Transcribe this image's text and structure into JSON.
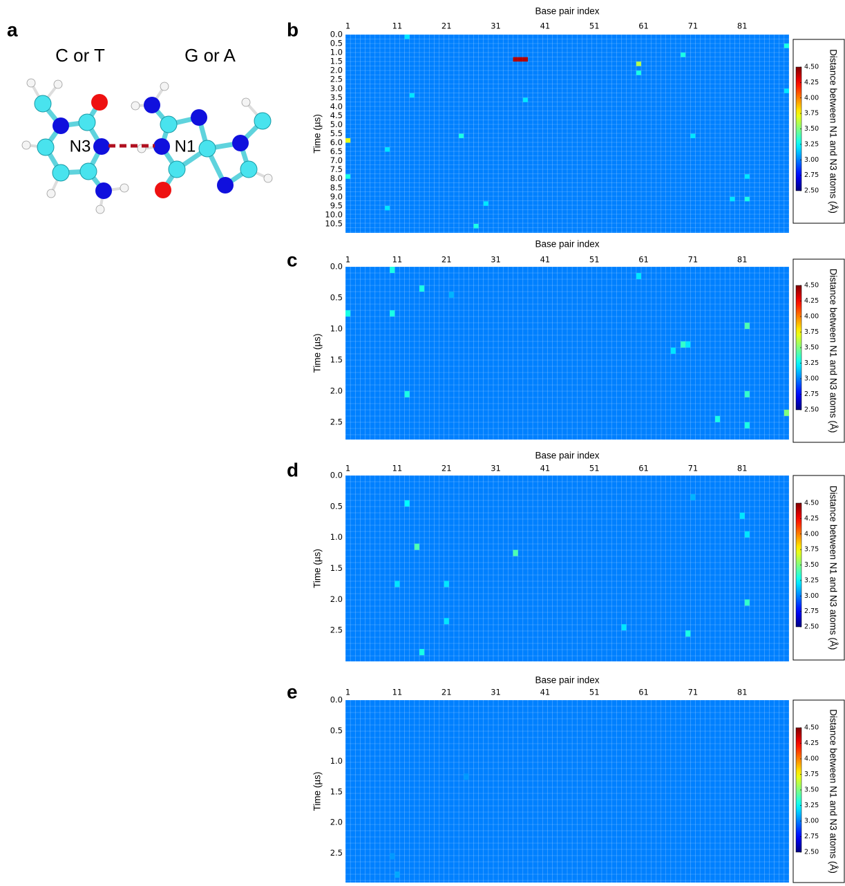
{
  "figure_a": {
    "panel": "a",
    "left_label": "C or T",
    "right_label": "G or A",
    "atom_labels": [
      "N3",
      "N1"
    ]
  },
  "chart_data": [
    {
      "type": "heatmap",
      "panel": "b",
      "title": "Base pair index",
      "y_label": "Time (µs)",
      "colorbar_label": "Distance between N1 and N3 atoms (Å)",
      "colormap": "jet",
      "clim": [
        2.5,
        4.5
      ],
      "colorbar_ticks": [
        {
          "value": 2.5,
          "label": "2.50"
        },
        2.75,
        {
          "value": 3,
          "label": "3.00"
        },
        3.25,
        {
          "value": 3.5,
          "label": "3.50"
        },
        3.75,
        {
          "value": 4,
          "label": "4.00"
        },
        4.25,
        {
          "value": 4.5,
          "label": "4.50"
        }
      ],
      "xlim": [
        0.5,
        90.5
      ],
      "xticks": [
        1,
        11,
        21,
        31,
        41,
        51,
        61,
        71,
        81
      ],
      "ylim": [
        0,
        11
      ],
      "yticks": [
        {
          "value": 0,
          "label": "0.0"
        },
        0.5,
        {
          "value": 1,
          "label": "1.0"
        },
        1.5,
        {
          "value": 2,
          "label": "2.0"
        },
        2.5,
        {
          "value": 3,
          "label": "3.0"
        },
        3.5,
        {
          "value": 4,
          "label": "4.0"
        },
        4.5,
        {
          "value": 5,
          "label": "5.0"
        },
        5.5,
        {
          "value": 6,
          "label": "6.0"
        },
        6.5,
        {
          "value": 7,
          "label": "7.0"
        },
        7.5,
        {
          "value": 8,
          "label": "8.0"
        },
        8.5,
        {
          "value": 9,
          "label": "9.0"
        },
        9.5,
        {
          "value": 10,
          "label": "10.0"
        },
        10.5
      ],
      "fill_value": 3.0,
      "cells": {
        "time": [
          1.25,
          1.25,
          1.25,
          1.5,
          0.5,
          0.0,
          5.75,
          7.75,
          2.0,
          1.0,
          7.75,
          9.0,
          10.5,
          5.5,
          5.5,
          3.5,
          3.0,
          3.25,
          6.25,
          9.5,
          9.25,
          9.0
        ],
        "base_pair": [
          35,
          36,
          37,
          60,
          90,
          13,
          1,
          1,
          60,
          69,
          82,
          82,
          27,
          24,
          71,
          37,
          90,
          14,
          9,
          9,
          29,
          79
        ],
        "values": [
          4.4,
          4.4,
          4.4,
          3.6,
          3.3,
          3.2,
          3.7,
          3.3,
          3.3,
          3.3,
          3.2,
          3.3,
          3.3,
          3.3,
          3.2,
          3.2,
          3.2,
          3.2,
          3.2,
          3.2,
          3.2,
          3.2
        ]
      }
    },
    {
      "type": "heatmap",
      "panel": "c",
      "title": "Base pair index",
      "y_label": "Time (µs)",
      "colorbar_label": "Distance between N1 and N3 atoms (Å)",
      "colormap": "jet",
      "clim": [
        2.5,
        4.5
      ],
      "colorbar_ticks": [
        {
          "value": 2.5,
          "label": "2.50"
        },
        2.75,
        {
          "value": 3,
          "label": "3.00"
        },
        3.25,
        {
          "value": 3.5,
          "label": "3.50"
        },
        3.75,
        {
          "value": 4,
          "label": "4.00"
        },
        4.25,
        {
          "value": 4.5,
          "label": "4.50"
        }
      ],
      "xlim": [
        0.5,
        90.5
      ],
      "xticks": [
        1,
        11,
        21,
        31,
        41,
        51,
        61,
        71,
        81
      ],
      "ylim": [
        0,
        2.78
      ],
      "yticks": [
        {
          "value": 0,
          "label": "0.0"
        },
        0.5,
        {
          "value": 1,
          "label": "1.0"
        },
        1.5,
        {
          "value": 2,
          "label": "2.0"
        },
        2.5
      ],
      "fill_value": 3.0,
      "cells": {
        "time": [
          0.0,
          0.3,
          0.7,
          0.7,
          0.1,
          0.9,
          1.2,
          1.2,
          1.3,
          2.0,
          2.0,
          2.3,
          2.4,
          2.5,
          0.4
        ],
        "base_pair": [
          10,
          16,
          1,
          10,
          60,
          82,
          69,
          70,
          67,
          13,
          82,
          90,
          76,
          82,
          22
        ],
        "values": [
          3.3,
          3.3,
          3.3,
          3.3,
          3.2,
          3.4,
          3.35,
          3.2,
          3.2,
          3.3,
          3.35,
          3.5,
          3.3,
          3.3,
          3.1
        ]
      }
    },
    {
      "type": "heatmap",
      "panel": "d",
      "title": "Base pair index",
      "y_label": "Time (µs)",
      "colorbar_label": "Distance between N1 and N3 atoms (Å)",
      "colormap": "jet",
      "clim": [
        2.5,
        4.5
      ],
      "colorbar_ticks": [
        {
          "value": 2.5,
          "label": "2.50"
        },
        2.75,
        {
          "value": 3,
          "label": "3.00"
        },
        3.25,
        {
          "value": 3.5,
          "label": "3.50"
        },
        3.75,
        {
          "value": 4,
          "label": "4.00"
        },
        4.25,
        {
          "value": 4.5,
          "label": "4.50"
        }
      ],
      "xlim": [
        0.5,
        90.5
      ],
      "xticks": [
        1,
        11,
        21,
        31,
        41,
        51,
        61,
        71,
        81
      ],
      "ylim": [
        0,
        3.0
      ],
      "yticks": [
        {
          "value": 0,
          "label": "0.0"
        },
        0.5,
        {
          "value": 1,
          "label": "1.0"
        },
        1.5,
        {
          "value": 2,
          "label": "2.0"
        },
        2.5
      ],
      "fill_value": 3.0,
      "cells": {
        "time": [
          0.4,
          0.3,
          0.6,
          1.1,
          1.2,
          1.7,
          1.7,
          2.0,
          2.3,
          2.4,
          2.5,
          2.8,
          0.9
        ],
        "base_pair": [
          13,
          71,
          81,
          15,
          35,
          11,
          21,
          82,
          21,
          57,
          70,
          16,
          82
        ],
        "values": [
          3.25,
          3.1,
          3.2,
          3.4,
          3.4,
          3.2,
          3.2,
          3.35,
          3.2,
          3.2,
          3.3,
          3.3,
          3.2
        ]
      }
    },
    {
      "type": "heatmap",
      "panel": "e",
      "title": "Base pair index",
      "y_label": "Time (µs)",
      "colorbar_label": "Distance between N1 and N3 atoms (Å)",
      "colormap": "jet",
      "clim": [
        2.5,
        4.5
      ],
      "colorbar_ticks": [
        {
          "value": 2.5,
          "label": "2.50"
        },
        2.75,
        {
          "value": 3,
          "label": "3.00"
        },
        3.25,
        {
          "value": 3.5,
          "label": "3.50"
        },
        3.75,
        {
          "value": 4,
          "label": "4.00"
        },
        4.25,
        {
          "value": 4.5,
          "label": "4.50"
        }
      ],
      "xlim": [
        0.5,
        90.5
      ],
      "xticks": [
        1,
        11,
        21,
        31,
        41,
        51,
        61,
        71,
        81
      ],
      "ylim": [
        0,
        2.98
      ],
      "yticks": [
        {
          "value": 0,
          "label": "0.0"
        },
        0.5,
        {
          "value": 1,
          "label": "1.0"
        },
        1.5,
        {
          "value": 2,
          "label": "2.0"
        },
        2.5
      ],
      "fill_value": 3.0,
      "cells": {
        "time": [
          2.8,
          2.5,
          1.2
        ],
        "base_pair": [
          11,
          10,
          25
        ],
        "values": [
          3.08,
          3.05,
          3.05
        ]
      }
    }
  ]
}
